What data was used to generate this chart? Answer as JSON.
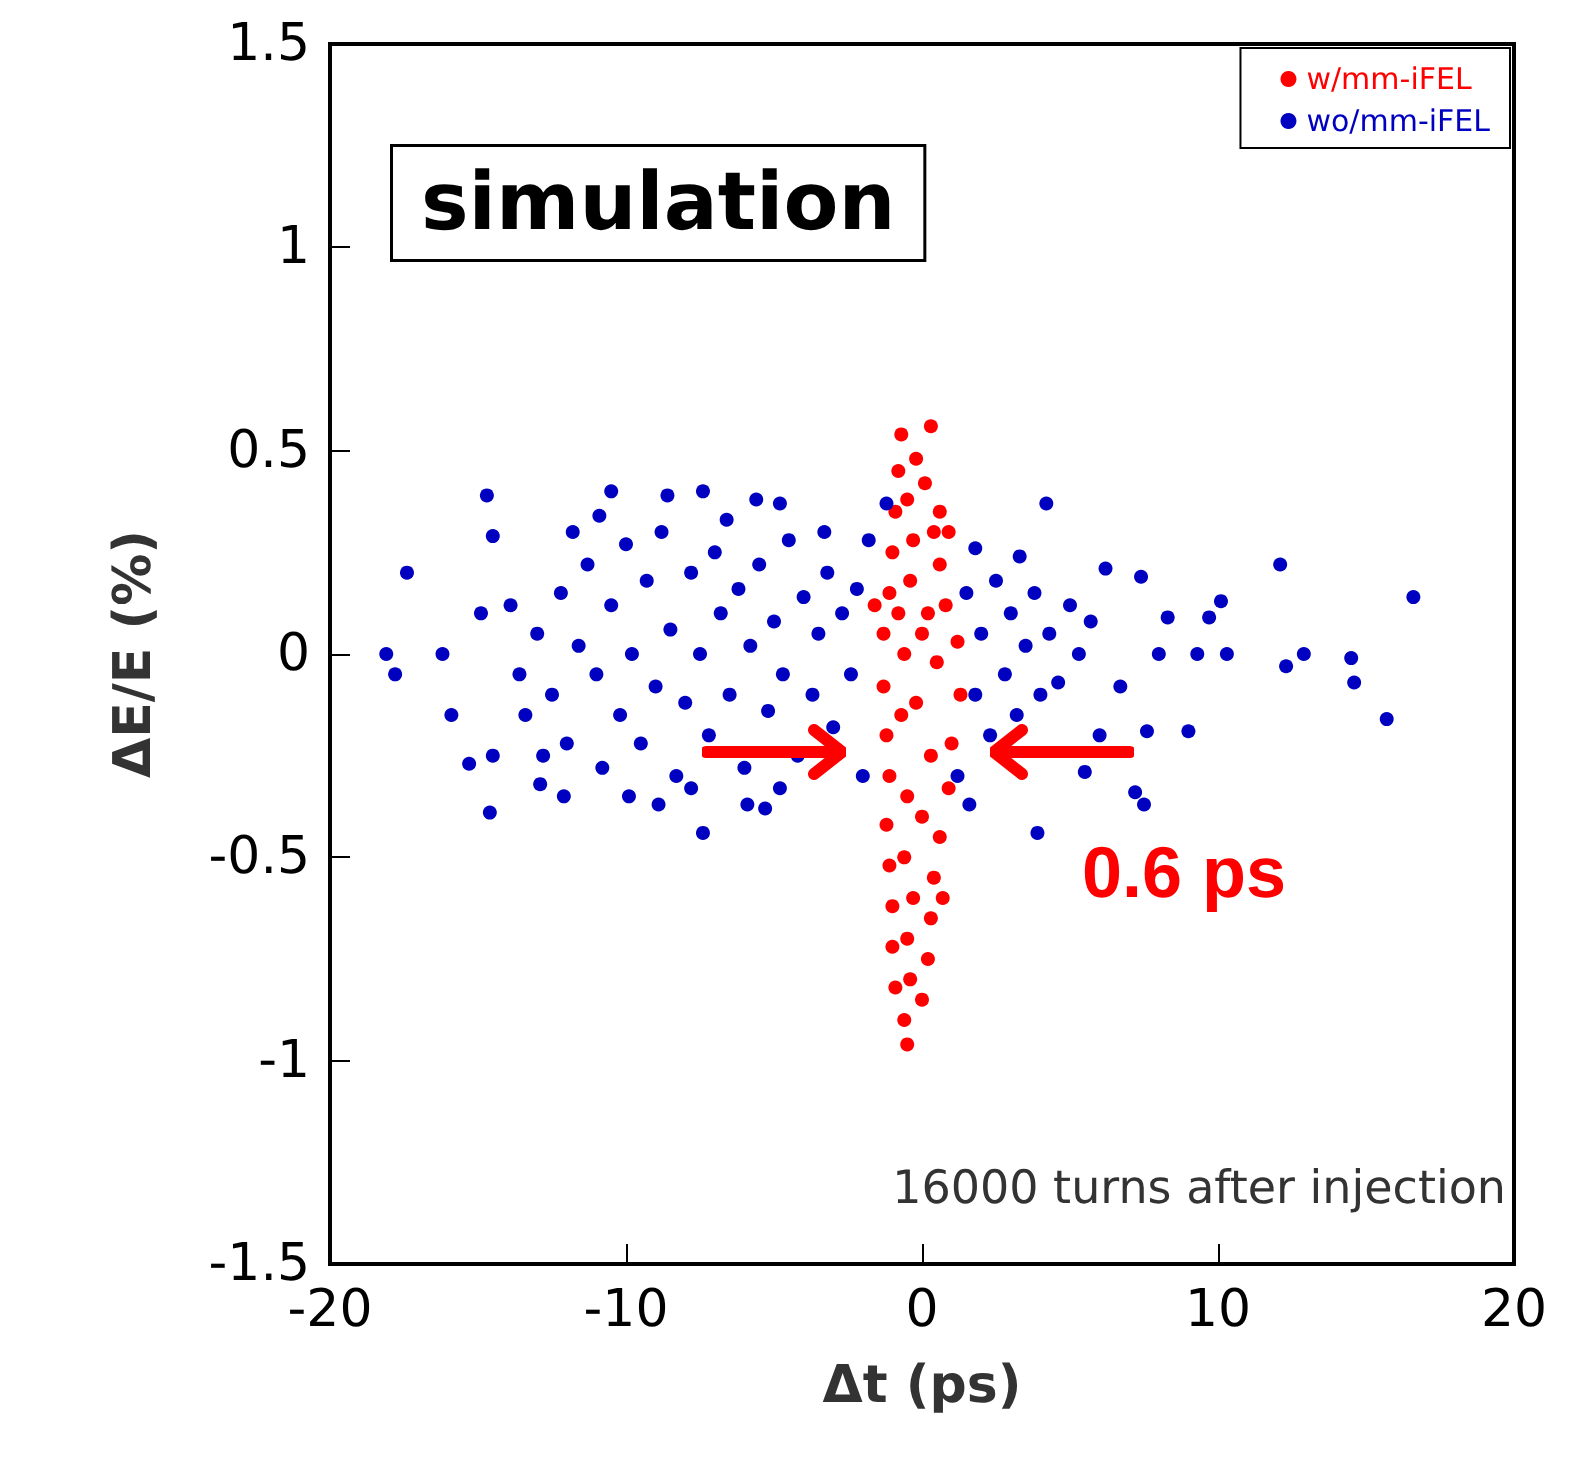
{
  "chart_data": {
    "type": "scatter",
    "xlabel": "Δt (ps)",
    "ylabel": "ΔE/E (%)",
    "xlim": [
      -20,
      20
    ],
    "xticks": [
      -20,
      -10,
      0,
      10,
      20
    ],
    "ylim": [
      -1.5,
      1.5
    ],
    "yticks": [
      -1.5,
      -1,
      -0.5,
      0,
      0.5,
      1,
      1.5
    ],
    "grid": false,
    "legend": "top right",
    "marker": "circle",
    "annotations": [
      "simulation",
      "16000 turns after injection",
      {
        "text": "0.6 ps",
        "x": 0,
        "y": -0.24
      }
    ],
    "series": [
      {
        "name": "w/mm-iFEL",
        "color": "#ff0000",
        "x": [
          -0.7,
          0.3,
          -0.8,
          -0.2,
          0.1,
          -0.9,
          0.4,
          -0.5,
          -1.0,
          0.6,
          -0.3,
          -1.1,
          0.8,
          -0.4,
          0.2,
          -1.3,
          1.2,
          -0.6,
          0.5,
          -1.3,
          1.3,
          -0.2,
          -1.2,
          1.0,
          0.3,
          -1.1,
          0.9,
          -0.5,
          -1.2,
          0.6,
          0.0,
          -1.1,
          0.4,
          -0.6,
          -1.0,
          0.3,
          -0.3,
          -1.0,
          0.2,
          -0.5,
          -0.9,
          0.0,
          -0.4,
          -0.6,
          -0.5,
          -1.6,
          0.9,
          0.7,
          -0.8,
          0.0,
          -0.7,
          0.6
        ],
        "values": [
          0.54,
          0.56,
          0.45,
          0.48,
          0.42,
          0.35,
          0.3,
          0.38,
          0.25,
          0.22,
          0.28,
          0.15,
          0.12,
          0.18,
          0.1,
          0.05,
          0.03,
          0.0,
          -0.02,
          -0.08,
          -0.1,
          -0.12,
          -0.2,
          -0.22,
          -0.25,
          -0.3,
          -0.33,
          -0.35,
          -0.42,
          -0.45,
          -0.4,
          -0.52,
          -0.55,
          -0.5,
          -0.62,
          -0.65,
          -0.6,
          -0.72,
          -0.75,
          -0.7,
          -0.82,
          -0.85,
          -0.8,
          -0.9,
          -0.96,
          0.12,
          0.3,
          -0.6,
          0.1,
          0.05,
          -0.15,
          0.35
        ]
      },
      {
        "name": "wo/mm-iFEL",
        "color": "#0000c0",
        "x": [
          -18.1,
          -17.8,
          -17.4,
          -16.2,
          -15.9,
          -15.3,
          -14.6,
          -14.5,
          -14.5,
          -14.9,
          -14.7,
          -10.5,
          -8.6,
          -7.4,
          -5.6,
          -7.4,
          -12.1,
          -12.9,
          -13.4,
          -8.9,
          -5.9,
          -5.3,
          -10.9,
          -4.8,
          -1.8,
          -1.2,
          -13,
          -12.5,
          -12.2,
          -12,
          -11.6,
          -11.3,
          -11,
          -10.8,
          -10.5,
          -10.2,
          -10,
          -9.8,
          -9.5,
          -9.3,
          -9,
          -8.8,
          -8.5,
          -8.3,
          -8,
          -7.8,
          -7.5,
          -7.2,
          -7,
          -6.8,
          -6.5,
          -6.2,
          -6,
          -5.8,
          -5.5,
          -5.2,
          -5,
          -4.7,
          -4.5,
          -4.2,
          -4,
          -3.7,
          -3.5,
          -3.2,
          -3,
          -2.7,
          -2.4,
          -2.2,
          -2,
          -13.6,
          -13.9,
          -12.8,
          -11.8,
          -6.6,
          -3.3,
          -4.8,
          -9.9,
          -7.8,
          4.2,
          12.1,
          16.6,
          12.9,
          12.3,
          14.5,
          14.6,
          15.7,
          10.3,
          9.3,
          9.0,
          7.6,
          10.1,
          9.7,
          8.3,
          8.0,
          7.4,
          6.2,
          7.5,
          7.2,
          3.9,
          5.5,
          6.7,
          6.0,
          1.8,
          3.3,
          1.5,
          1.8,
          2,
          2.3,
          2.5,
          2.8,
          3,
          3.2,
          3.5,
          3.8,
          4,
          4.3,
          4.6,
          5,
          5.3,
          5.7,
          1.2,
          1.6
        ],
        "values": [
          0,
          -0.05,
          0.2,
          0,
          -0.15,
          -0.27,
          -0.39,
          -0.25,
          0.29,
          0.1,
          0.39,
          0.4,
          0.39,
          0.4,
          0.38,
          -0.44,
          -0.35,
          -0.32,
          -0.15,
          -0.37,
          -0.37,
          -0.38,
          0.34,
          0.37,
          0.28,
          0.37,
          0.05,
          -0.1,
          0.15,
          -0.22,
          0.02,
          0.22,
          -0.05,
          -0.28,
          0.12,
          -0.15,
          0.27,
          0,
          -0.22,
          0.18,
          -0.08,
          0.3,
          0.06,
          -0.3,
          -0.12,
          0.2,
          0,
          -0.2,
          0.25,
          0.1,
          -0.1,
          0.16,
          -0.28,
          0.02,
          0.22,
          -0.14,
          0.08,
          -0.05,
          0.28,
          -0.25,
          0.14,
          -0.1,
          0.05,
          0.2,
          -0.18,
          0.1,
          -0.05,
          0.16,
          -0.3,
          -0.05,
          0.12,
          -0.25,
          0.3,
          0.33,
          0.3,
          -0.33,
          -0.35,
          -0.33,
          0.37,
          0.22,
          0.14,
          0,
          -0.03,
          -0.01,
          -0.07,
          -0.16,
          0,
          0,
          -0.19,
          -0.19,
          0.13,
          0.09,
          0.09,
          0,
          0.19,
          0.21,
          -0.37,
          -0.34,
          -0.44,
          -0.29,
          -0.08,
          -0.2,
          0.26,
          0.24,
          0.15,
          -0.1,
          0.05,
          -0.2,
          0.18,
          -0.05,
          0.1,
          -0.15,
          0.02,
          0.15,
          -0.1,
          0.05,
          -0.07,
          0.12,
          0,
          0.08,
          -0.3,
          -0.37
        ]
      }
    ]
  }
}
